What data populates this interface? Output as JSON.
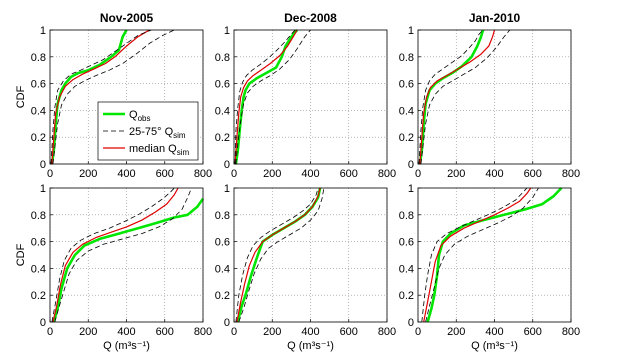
{
  "chart_data": [
    {
      "type": "line",
      "title": "Nov-2005",
      "ylabel": "CDF",
      "xlabel": "",
      "xlim": [
        0,
        800
      ],
      "ylim": [
        0,
        1
      ],
      "xticks": [
        "0",
        "200",
        "400",
        "600",
        "800"
      ],
      "yticks": [
        "0",
        "0.2",
        "0.4",
        "0.6",
        "0.8",
        "1"
      ],
      "grid": true,
      "legend": {
        "placement": "center-left",
        "entries": [
          {
            "main": "Q",
            "sub": "obs",
            "color": "#00e600",
            "style": "solid-thick"
          },
          {
            "main": "25-75° Q",
            "sub": "sim",
            "color": "#000000",
            "style": "dashed"
          },
          {
            "main": "median Q",
            "sub": "sim",
            "color": "#e00000",
            "style": "solid"
          }
        ]
      },
      "series": [
        {
          "color": "#00e600",
          "style": "solid-thick",
          "x": [
            10,
            20,
            30,
            40,
            60,
            80,
            110,
            150,
            200,
            260,
            320,
            360,
            380,
            400
          ],
          "y": [
            0,
            0.1,
            0.3,
            0.45,
            0.55,
            0.6,
            0.65,
            0.68,
            0.7,
            0.74,
            0.8,
            0.85,
            0.95,
            1.0
          ]
        },
        {
          "color": "#e00000",
          "style": "solid",
          "x": [
            10,
            20,
            30,
            50,
            80,
            120,
            170,
            230,
            290,
            340,
            400,
            460,
            520
          ],
          "y": [
            0,
            0.2,
            0.38,
            0.5,
            0.58,
            0.63,
            0.67,
            0.71,
            0.75,
            0.8,
            0.88,
            0.95,
            1.0
          ]
        },
        {
          "color": "#000000",
          "style": "dashed",
          "x": [
            5,
            15,
            25,
            40,
            70,
            110,
            160,
            220,
            280,
            340,
            400,
            460,
            530
          ],
          "y": [
            0,
            0.25,
            0.42,
            0.55,
            0.62,
            0.67,
            0.7,
            0.74,
            0.78,
            0.84,
            0.9,
            0.96,
            1.0
          ]
        },
        {
          "color": "#000000",
          "style": "dashed",
          "x": [
            15,
            25,
            40,
            60,
            90,
            130,
            180,
            240,
            310,
            380,
            450,
            520,
            590,
            650
          ],
          "y": [
            0,
            0.12,
            0.3,
            0.44,
            0.52,
            0.58,
            0.62,
            0.66,
            0.7,
            0.75,
            0.82,
            0.9,
            0.96,
            1.0
          ]
        }
      ]
    },
    {
      "type": "line",
      "title": "Dec-2008",
      "ylabel": "",
      "xlabel": "",
      "xlim": [
        0,
        800
      ],
      "ylim": [
        0,
        1
      ],
      "xticks": [
        "0",
        "200",
        "400",
        "600",
        "800"
      ],
      "yticks": [
        "0",
        "0.2",
        "0.4",
        "0.6",
        "0.8",
        "1"
      ],
      "grid": true,
      "series": [
        {
          "color": "#00e600",
          "style": "solid-thick",
          "x": [
            10,
            20,
            30,
            40,
            50,
            60,
            80,
            120,
            170,
            220,
            250,
            270,
            300,
            330
          ],
          "y": [
            0,
            0.1,
            0.25,
            0.4,
            0.5,
            0.55,
            0.6,
            0.64,
            0.68,
            0.72,
            0.8,
            0.88,
            0.95,
            1.0
          ]
        },
        {
          "color": "#e00000",
          "style": "solid",
          "x": [
            5,
            15,
            25,
            35,
            50,
            70,
            100,
            140,
            190,
            240,
            280,
            310,
            330
          ],
          "y": [
            0,
            0.2,
            0.38,
            0.5,
            0.57,
            0.62,
            0.66,
            0.7,
            0.75,
            0.81,
            0.88,
            0.95,
            1.0
          ]
        },
        {
          "color": "#000000",
          "style": "dashed",
          "x": [
            5,
            10,
            20,
            30,
            45,
            65,
            95,
            135,
            180,
            225,
            265,
            300,
            320
          ],
          "y": [
            0,
            0.25,
            0.42,
            0.54,
            0.61,
            0.66,
            0.7,
            0.74,
            0.79,
            0.85,
            0.91,
            0.97,
            1.0
          ]
        },
        {
          "color": "#000000",
          "style": "dashed",
          "x": [
            10,
            20,
            35,
            50,
            70,
            100,
            140,
            190,
            240,
            290,
            330,
            370,
            400
          ],
          "y": [
            0,
            0.15,
            0.32,
            0.45,
            0.53,
            0.58,
            0.62,
            0.66,
            0.71,
            0.78,
            0.86,
            0.95,
            1.0
          ]
        }
      ]
    },
    {
      "type": "line",
      "title": "Jan-2010",
      "ylabel": "",
      "xlabel": "",
      "xlim": [
        0,
        800
      ],
      "ylim": [
        0,
        1
      ],
      "xticks": [
        "0",
        "200",
        "400",
        "600",
        "800"
      ],
      "yticks": [
        "0",
        "0.2",
        "0.4",
        "0.6",
        "0.8",
        "1"
      ],
      "grid": true,
      "series": [
        {
          "color": "#00e600",
          "style": "solid-thick",
          "x": [
            10,
            20,
            30,
            40,
            60,
            90,
            130,
            180,
            230,
            280,
            310,
            330,
            340
          ],
          "y": [
            0,
            0.1,
            0.3,
            0.45,
            0.55,
            0.6,
            0.64,
            0.68,
            0.73,
            0.8,
            0.88,
            0.95,
            1.0
          ]
        },
        {
          "color": "#e00000",
          "style": "solid",
          "x": [
            10,
            20,
            30,
            45,
            65,
            100,
            150,
            210,
            270,
            330,
            370,
            390,
            400
          ],
          "y": [
            0,
            0.2,
            0.38,
            0.5,
            0.57,
            0.62,
            0.66,
            0.71,
            0.76,
            0.82,
            0.88,
            0.95,
            1.0
          ]
        },
        {
          "color": "#000000",
          "style": "dashed",
          "x": [
            5,
            15,
            25,
            40,
            60,
            90,
            130,
            180,
            230,
            270,
            300,
            320,
            340
          ],
          "y": [
            0,
            0.25,
            0.42,
            0.55,
            0.62,
            0.67,
            0.71,
            0.76,
            0.81,
            0.87,
            0.92,
            0.97,
            1.0
          ]
        },
        {
          "color": "#000000",
          "style": "dashed",
          "x": [
            15,
            25,
            40,
            60,
            90,
            130,
            180,
            240,
            300,
            360,
            410,
            450,
            480
          ],
          "y": [
            0,
            0.12,
            0.3,
            0.44,
            0.52,
            0.58,
            0.62,
            0.67,
            0.72,
            0.79,
            0.87,
            0.95,
            1.0
          ]
        }
      ]
    },
    {
      "type": "line",
      "title": "",
      "ylabel": "CDF",
      "xlabel": "Q (m³s⁻¹)",
      "xlim": [
        0,
        800
      ],
      "ylim": [
        0,
        1
      ],
      "xticks": [
        "0",
        "200",
        "400",
        "600",
        "800"
      ],
      "yticks": [
        "0",
        "0.2",
        "0.4",
        "0.6",
        "0.8",
        "1"
      ],
      "grid": true,
      "series": [
        {
          "color": "#00e600",
          "style": "solid-thick",
          "x": [
            20,
            40,
            60,
            90,
            130,
            180,
            260,
            360,
            460,
            560,
            650,
            720,
            770,
            800
          ],
          "y": [
            0,
            0.1,
            0.25,
            0.4,
            0.5,
            0.57,
            0.62,
            0.66,
            0.7,
            0.74,
            0.78,
            0.8,
            0.86,
            0.92
          ]
        },
        {
          "color": "#e00000",
          "style": "solid",
          "x": [
            15,
            35,
            55,
            80,
            120,
            170,
            240,
            320,
            400,
            480,
            550,
            610,
            650,
            670
          ],
          "y": [
            0,
            0.12,
            0.28,
            0.42,
            0.52,
            0.58,
            0.63,
            0.67,
            0.71,
            0.76,
            0.82,
            0.88,
            0.95,
            1.0
          ]
        },
        {
          "color": "#000000",
          "style": "dashed",
          "x": [
            10,
            30,
            50,
            75,
            110,
            160,
            230,
            310,
            390,
            460,
            530,
            590,
            630,
            650
          ],
          "y": [
            0,
            0.15,
            0.32,
            0.46,
            0.55,
            0.61,
            0.66,
            0.7,
            0.75,
            0.8,
            0.86,
            0.92,
            0.97,
            1.0
          ]
        },
        {
          "color": "#000000",
          "style": "dashed",
          "x": [
            25,
            45,
            70,
            100,
            140,
            200,
            280,
            380,
            480,
            570,
            640,
            690,
            720,
            740
          ],
          "y": [
            0,
            0.1,
            0.22,
            0.36,
            0.46,
            0.53,
            0.58,
            0.62,
            0.66,
            0.71,
            0.77,
            0.84,
            0.93,
            1.0
          ]
        }
      ]
    },
    {
      "type": "line",
      "title": "",
      "ylabel": "",
      "xlabel": "Q (m³s⁻¹)",
      "xlim": [
        0,
        800
      ],
      "ylim": [
        0,
        1
      ],
      "xticks": [
        "0",
        "200",
        "400",
        "600",
        "800"
      ],
      "yticks": [
        "0",
        "0.2",
        "0.4",
        "0.6",
        "0.8",
        "1"
      ],
      "grid": true,
      "series": [
        {
          "color": "#00e600",
          "style": "solid-thick",
          "x": [
            20,
            40,
            60,
            90,
            120,
            150,
            200,
            260,
            320,
            370,
            410,
            440,
            450
          ],
          "y": [
            0,
            0.12,
            0.2,
            0.35,
            0.48,
            0.6,
            0.65,
            0.7,
            0.75,
            0.8,
            0.86,
            0.93,
            1.0
          ]
        },
        {
          "color": "#e00000",
          "style": "solid",
          "x": [
            15,
            35,
            55,
            80,
            110,
            150,
            200,
            260,
            320,
            370,
            410,
            440,
            450
          ],
          "y": [
            0,
            0.15,
            0.28,
            0.42,
            0.52,
            0.6,
            0.65,
            0.7,
            0.75,
            0.8,
            0.86,
            0.94,
            1.0
          ]
        },
        {
          "color": "#000000",
          "style": "dashed",
          "x": [
            10,
            25,
            45,
            70,
            100,
            140,
            190,
            250,
            310,
            360,
            400,
            430,
            440
          ],
          "y": [
            0,
            0.2,
            0.35,
            0.48,
            0.57,
            0.63,
            0.68,
            0.73,
            0.78,
            0.83,
            0.88,
            0.95,
            1.0
          ]
        },
        {
          "color": "#000000",
          "style": "dashed",
          "x": [
            25,
            50,
            75,
            105,
            140,
            180,
            230,
            290,
            350,
            400,
            440,
            460,
            470
          ],
          "y": [
            0,
            0.1,
            0.22,
            0.36,
            0.47,
            0.55,
            0.6,
            0.65,
            0.7,
            0.76,
            0.83,
            0.92,
            1.0
          ]
        }
      ]
    },
    {
      "type": "line",
      "title": "",
      "ylabel": "",
      "xlabel": "Q (m³s⁻¹)",
      "xlim": [
        0,
        800
      ],
      "ylim": [
        0,
        1
      ],
      "xticks": [
        "0",
        "200",
        "400",
        "600",
        "800"
      ],
      "yticks": [
        "0",
        "0.2",
        "0.4",
        "0.6",
        "0.8",
        "1"
      ],
      "grid": true,
      "series": [
        {
          "color": "#00e600",
          "style": "solid-thick",
          "x": [
            50,
            70,
            85,
            100,
            110,
            130,
            170,
            240,
            340,
            450,
            560,
            650,
            710,
            750
          ],
          "y": [
            0,
            0.1,
            0.2,
            0.35,
            0.5,
            0.6,
            0.66,
            0.72,
            0.76,
            0.8,
            0.84,
            0.88,
            0.94,
            1.0
          ]
        },
        {
          "color": "#e00000",
          "style": "solid",
          "x": [
            30,
            50,
            70,
            90,
            120,
            170,
            240,
            320,
            400,
            470,
            530,
            570,
            590
          ],
          "y": [
            0,
            0.15,
            0.3,
            0.45,
            0.57,
            0.64,
            0.7,
            0.75,
            0.8,
            0.85,
            0.9,
            0.96,
            1.0
          ]
        },
        {
          "color": "#000000",
          "style": "dashed",
          "x": [
            20,
            35,
            50,
            70,
            100,
            150,
            220,
            300,
            380,
            450,
            510,
            550,
            570
          ],
          "y": [
            0,
            0.2,
            0.35,
            0.5,
            0.6,
            0.66,
            0.71,
            0.76,
            0.81,
            0.86,
            0.91,
            0.97,
            1.0
          ]
        },
        {
          "color": "#000000",
          "style": "dashed",
          "x": [
            40,
            60,
            85,
            110,
            140,
            190,
            260,
            340,
            420,
            490,
            550,
            600,
            630
          ],
          "y": [
            0,
            0.12,
            0.26,
            0.4,
            0.5,
            0.58,
            0.64,
            0.69,
            0.74,
            0.79,
            0.85,
            0.93,
            1.0
          ]
        }
      ]
    }
  ]
}
